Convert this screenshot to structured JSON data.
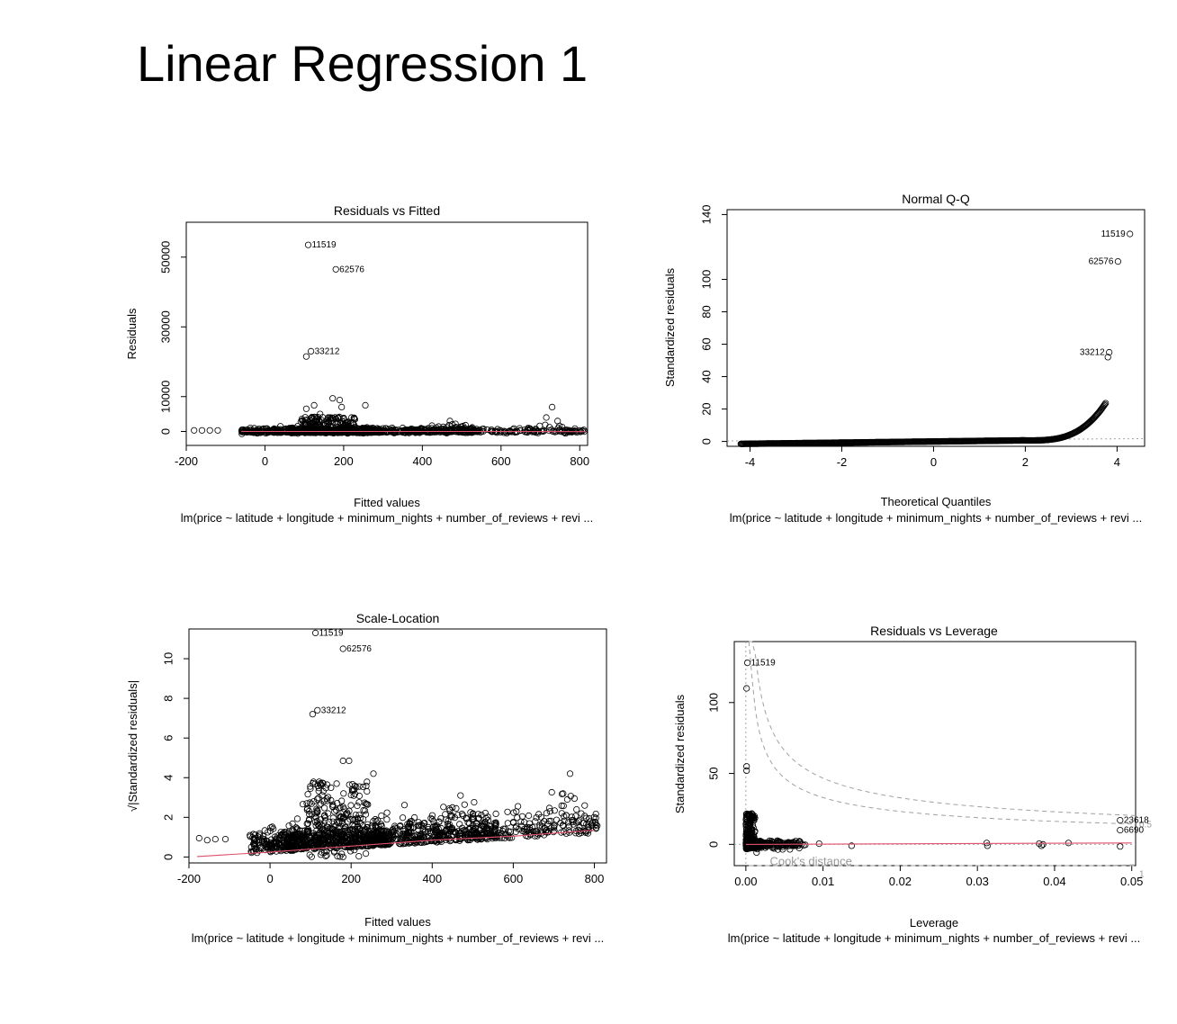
{
  "slide": {
    "title": "Linear Regression 1"
  },
  "model_formula": "lm(price ~ latitude + longitude + minimum_nights + number_of_reviews + revi ...",
  "colors": {
    "points": "#000000",
    "smoother": "#e0506a",
    "reference": "#999999"
  },
  "chart_data": [
    {
      "type": "scatter",
      "title": "Residuals vs Fitted",
      "xlabel": "Fitted values",
      "ylabel": "Residuals",
      "xlim": [
        -200,
        820
      ],
      "ylim": [
        -4000,
        60000
      ],
      "xticks": [
        -200,
        0,
        200,
        400,
        600,
        800
      ],
      "yticks": [
        0,
        10000,
        30000,
        50000
      ],
      "xtick_labels": [
        "-200",
        "0",
        "200",
        "400",
        "600",
        "800"
      ],
      "ytick_labels": [
        "0",
        "10000",
        "30000",
        "50000"
      ],
      "labeled_points": [
        {
          "label": "11519",
          "x": 110,
          "y": 53500
        },
        {
          "label": "62576",
          "x": 180,
          "y": 46500
        },
        {
          "label": "33212",
          "x": 117,
          "y": 23000
        }
      ],
      "outliers": [
        {
          "x": 105,
          "y": 21500
        },
        {
          "x": 105,
          "y": 6500
        },
        {
          "x": 125,
          "y": 7500
        },
        {
          "x": 172,
          "y": 9500
        },
        {
          "x": 190,
          "y": 9000
        },
        {
          "x": 195,
          "y": 7000
        },
        {
          "x": 255,
          "y": 7500
        },
        {
          "x": 730,
          "y": 7000
        },
        {
          "x": 715,
          "y": 4000
        },
        {
          "x": 140,
          "y": 5000
        },
        {
          "x": 470,
          "y": 3000
        },
        {
          "x": -180,
          "y": 300
        },
        {
          "x": -160,
          "y": 300
        },
        {
          "x": -140,
          "y": 300
        },
        {
          "x": -120,
          "y": 300
        }
      ],
      "bulk": {
        "x_range": [
          -60,
          815
        ],
        "residual_band": [
          -800,
          2500
        ]
      },
      "smoother": [
        [
          -60,
          0
        ],
        [
          200,
          0
        ],
        [
          400,
          0
        ],
        [
          600,
          0
        ],
        [
          815,
          -50
        ]
      ]
    },
    {
      "type": "scatter",
      "title": "Normal Q-Q",
      "xlabel": "Theoretical Quantiles",
      "ylabel": "Standardized residuals",
      "xlim": [
        -4.5,
        4.6
      ],
      "ylim": [
        -3,
        143
      ],
      "xticks": [
        -4,
        -2,
        0,
        2,
        4
      ],
      "yticks": [
        0,
        20,
        40,
        60,
        80,
        100,
        140
      ],
      "xtick_labels": [
        "-4",
        "-2",
        "0",
        "2",
        "4"
      ],
      "ytick_labels": [
        "0",
        "20",
        "40",
        "60",
        "80",
        "100",
        "140"
      ],
      "labeled_points": [
        {
          "label": "11519",
          "x": 4.28,
          "y": 128
        },
        {
          "label": "62576",
          "x": 4.02,
          "y": 111
        },
        {
          "label": "33212",
          "x": 3.83,
          "y": 55
        }
      ],
      "extra_points": [
        {
          "x": 3.8,
          "y": 52
        }
      ],
      "reference_line": {
        "intercept": 1,
        "slope": 0.15
      }
    },
    {
      "type": "scatter",
      "title": "Scale-Location",
      "xlabel": "Fitted values",
      "ylabel": "√|Standardized residuals|",
      "xlim": [
        -200,
        830
      ],
      "ylim": [
        -0.3,
        11.5
      ],
      "xticks": [
        -200,
        0,
        200,
        400,
        600,
        800
      ],
      "yticks": [
        0,
        2,
        4,
        6,
        8,
        10
      ],
      "xtick_labels": [
        "-200",
        "0",
        "200",
        "400",
        "600",
        "800"
      ],
      "ytick_labels": [
        "0",
        "2",
        "4",
        "6",
        "8",
        "10"
      ],
      "labeled_points": [
        {
          "label": "11519",
          "x": 112,
          "y": 11.3
        },
        {
          "label": "62576",
          "x": 180,
          "y": 10.5
        },
        {
          "label": "33212",
          "x": 117,
          "y": 7.4
        }
      ],
      "outliers": [
        {
          "x": 105,
          "y": 7.2
        },
        {
          "x": 180,
          "y": 4.85
        },
        {
          "x": 195,
          "y": 4.85
        },
        {
          "x": 255,
          "y": 4.2
        },
        {
          "x": 740,
          "y": 4.2
        },
        {
          "x": 470,
          "y": 3.1
        },
        {
          "x": -175,
          "y": 0.95
        },
        {
          "x": -155,
          "y": 0.85
        },
        {
          "x": -135,
          "y": 0.9
        },
        {
          "x": -110,
          "y": 0.9
        }
      ],
      "smoother": [
        [
          -180,
          0.02
        ],
        [
          0,
          0.25
        ],
        [
          200,
          0.55
        ],
        [
          400,
          0.85
        ],
        [
          600,
          1.05
        ],
        [
          800,
          1.35
        ]
      ]
    },
    {
      "type": "scatter",
      "title": "Residuals vs Leverage",
      "xlabel": "Leverage",
      "ylabel": "Standardized residuals",
      "xlim": [
        -0.0015,
        0.0505
      ],
      "ylim": [
        -15,
        143
      ],
      "xticks": [
        0,
        0.01,
        0.02,
        0.03,
        0.04,
        0.05
      ],
      "yticks": [
        0,
        50,
        100
      ],
      "xtick_labels": [
        "0.00",
        "0.01",
        "0.02",
        "0.03",
        "0.04",
        "0.05"
      ],
      "ytick_labels": [
        "0",
        "50",
        "100"
      ],
      "labeled_points": [
        {
          "label": "11519",
          "x": 0.0002,
          "y": 128
        },
        {
          "label": "23618",
          "x": 0.0485,
          "y": 17
        },
        {
          "label": "6690",
          "x": 0.0485,
          "y": 10
        }
      ],
      "points": [
        {
          "x": 0.0001,
          "y": 110
        },
        {
          "x": 0.0001,
          "y": 55
        },
        {
          "x": 0.0001,
          "y": 52
        },
        {
          "x": 0.0137,
          "y": -1
        },
        {
          "x": 0.0095,
          "y": 0.5
        },
        {
          "x": 0.0313,
          "y": -1
        },
        {
          "x": 0.0312,
          "y": 1
        },
        {
          "x": 0.038,
          "y": 0.5
        },
        {
          "x": 0.0383,
          "y": -1
        },
        {
          "x": 0.0385,
          "y": 0
        },
        {
          "x": 0.0418,
          "y": 1
        },
        {
          "x": 0.0485,
          "y": -1.5
        }
      ],
      "cooks_contours": [
        0.5,
        1
      ],
      "contour_label": "Cook's distance",
      "contour_value_labels": [
        "0.5",
        "1"
      ],
      "smoother": [
        [
          0,
          0
        ],
        [
          0.05,
          1
        ]
      ]
    }
  ]
}
